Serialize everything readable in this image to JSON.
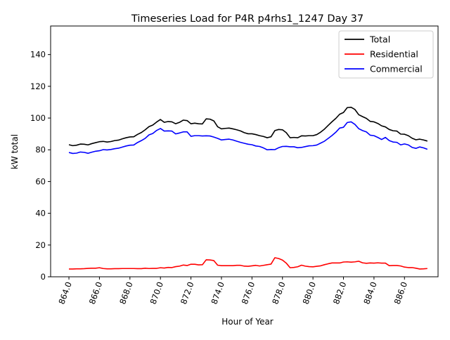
{
  "chart_data": {
    "type": "line",
    "title": "Timeseries Load for P4R p4rhs1_1247  Day 37",
    "xlabel": "Hour of Year",
    "ylabel": "kW total",
    "xlim": [
      862.8,
      888.2
    ],
    "ylim": [
      0,
      158
    ],
    "x_ticks": [
      864,
      866,
      868,
      870,
      872,
      874,
      876,
      878,
      880,
      882,
      884,
      886
    ],
    "x_tick_labels": [
      "864.0",
      "866.0",
      "868.0",
      "870.0",
      "872.0",
      "874.0",
      "876.0",
      "878.0",
      "880.0",
      "882.0",
      "884.0",
      "886.0"
    ],
    "y_ticks": [
      0,
      20,
      40,
      60,
      80,
      100,
      120,
      140
    ],
    "y_tick_labels": [
      "0",
      "20",
      "40",
      "60",
      "80",
      "100",
      "120",
      "140"
    ],
    "legend_position": "top-right",
    "grid": false,
    "x_start": 864.0,
    "x_step": 0.25,
    "series": [
      {
        "name": "Total",
        "color": "#000000",
        "values": [
          83.2,
          82.6,
          82.9,
          83.6,
          83.5,
          83.1,
          83.9,
          84.5,
          85.1,
          85.3,
          84.9,
          85.2,
          85.8,
          86.1,
          86.9,
          87.6,
          88.1,
          88.2,
          89.7,
          90.9,
          92.6,
          94.6,
          95.6,
          97.5,
          99.1,
          97.3,
          97.8,
          97.6,
          96.4,
          97.3,
          98.7,
          98.4,
          96.4,
          96.8,
          96.4,
          96.3,
          99.5,
          99.3,
          98.2,
          94.5,
          93.2,
          93.5,
          93.7,
          93.2,
          92.6,
          91.9,
          90.8,
          90.1,
          90.1,
          89.6,
          88.9,
          88.4,
          87.6,
          88.2,
          92.1,
          92.8,
          92.6,
          90.8,
          87.6,
          87.8,
          87.6,
          88.8,
          88.7,
          88.9,
          88.9,
          89.6,
          91.1,
          93.0,
          95.4,
          97.7,
          99.8,
          102.4,
          103.5,
          106.6,
          106.8,
          105.4,
          102.1,
          100.9,
          99.8,
          97.9,
          97.6,
          96.6,
          95.1,
          94.4,
          92.8,
          92.0,
          91.8,
          89.9,
          89.8,
          88.9,
          87.3,
          86.3,
          86.7,
          86.2,
          85.5
        ]
      },
      {
        "name": "Residential",
        "color": "#ff0000",
        "values": [
          4.9,
          4.9,
          5.0,
          5.0,
          5.1,
          5.3,
          5.4,
          5.4,
          5.7,
          5.2,
          5.0,
          5.0,
          5.1,
          5.1,
          5.2,
          5.2,
          5.2,
          5.2,
          5.1,
          5.1,
          5.4,
          5.2,
          5.3,
          5.3,
          5.7,
          5.5,
          5.9,
          5.8,
          6.4,
          6.7,
          7.4,
          7.1,
          7.9,
          7.9,
          7.5,
          7.6,
          10.7,
          10.6,
          10.2,
          7.3,
          7.0,
          7.0,
          7.0,
          7.0,
          7.2,
          7.2,
          6.7,
          6.6,
          6.9,
          7.2,
          6.8,
          7.2,
          7.6,
          8.0,
          12.0,
          11.5,
          10.5,
          8.6,
          5.7,
          5.9,
          6.3,
          7.3,
          6.7,
          6.4,
          6.3,
          6.6,
          6.9,
          7.6,
          8.2,
          8.7,
          8.7,
          8.7,
          9.3,
          9.4,
          9.2,
          9.4,
          9.8,
          8.8,
          8.5,
          8.7,
          8.6,
          8.8,
          8.6,
          8.6,
          7.0,
          7.1,
          7.1,
          6.8,
          6.1,
          5.8,
          5.8,
          5.4,
          4.9,
          5.0,
          5.2
        ]
      },
      {
        "name": "Commercial",
        "color": "#0000ff",
        "values": [
          78.3,
          77.7,
          77.9,
          78.6,
          78.4,
          77.8,
          78.5,
          79.1,
          79.4,
          80.1,
          79.9,
          80.2,
          80.7,
          81.0,
          81.7,
          82.4,
          82.9,
          83.0,
          84.6,
          85.8,
          87.2,
          89.4,
          90.3,
          92.2,
          93.4,
          91.8,
          91.9,
          91.8,
          90.0,
          90.6,
          91.3,
          91.3,
          88.5,
          88.9,
          88.9,
          88.7,
          88.8,
          88.7,
          88.0,
          87.2,
          86.2,
          86.5,
          86.7,
          86.2,
          85.4,
          84.7,
          84.1,
          83.5,
          83.2,
          82.4,
          82.1,
          81.2,
          80.0,
          80.2,
          80.1,
          81.3,
          82.1,
          82.2,
          81.9,
          81.9,
          81.3,
          81.5,
          82.0,
          82.5,
          82.6,
          83.0,
          84.2,
          85.4,
          87.2,
          89.0,
          91.1,
          93.7,
          94.2,
          97.2,
          97.6,
          96.0,
          93.3,
          92.1,
          91.3,
          89.2,
          88.9,
          87.8,
          86.5,
          87.8,
          85.8,
          84.9,
          84.7,
          83.1,
          83.7,
          83.1,
          81.5,
          80.9,
          81.8,
          81.2,
          80.3
        ]
      }
    ]
  }
}
